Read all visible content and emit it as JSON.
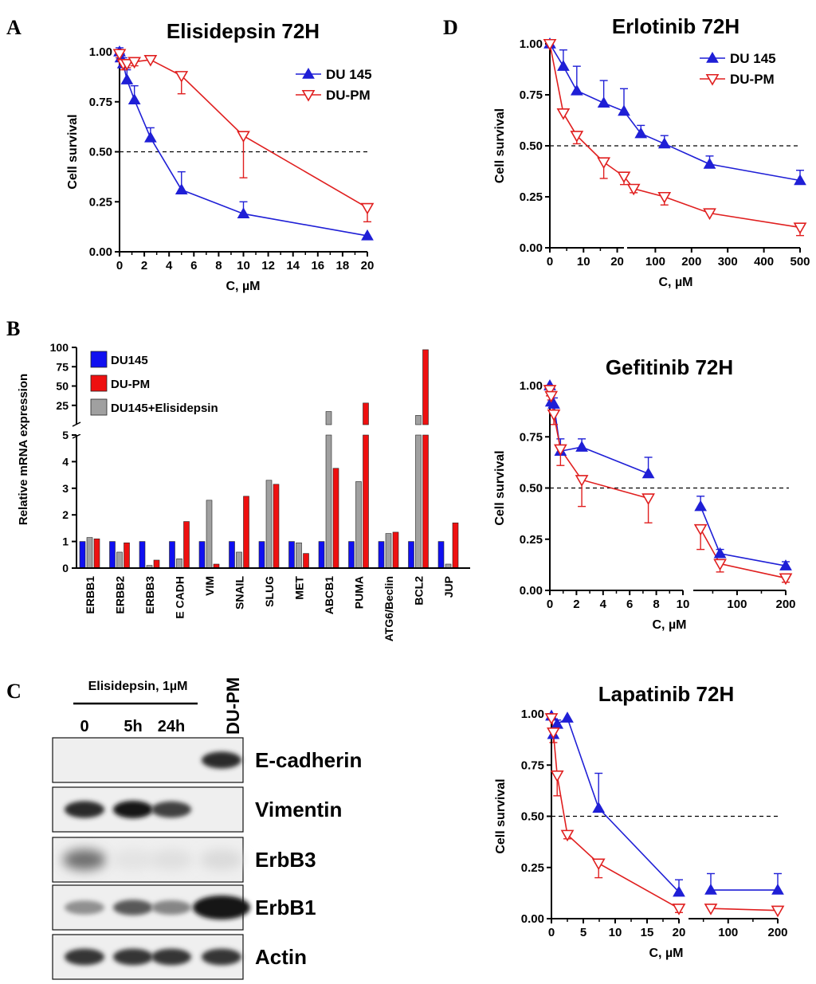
{
  "panel_labels": [
    "A",
    "B",
    "C",
    "D"
  ],
  "chart_data": [
    {
      "id": "A",
      "type": "line",
      "title": "Elisidepsin 72H",
      "xlabel": "C, µM",
      "ylabel": "Cell survival",
      "xlim": [
        0,
        20
      ],
      "ylim": [
        0,
        1
      ],
      "xticks": [
        "0",
        "2",
        "4",
        "6",
        "8",
        "10",
        "12",
        "14",
        "16",
        "18",
        "20"
      ],
      "yticks": [
        "0.00",
        "0.25",
        "0.50",
        "0.75",
        "1.00"
      ],
      "reference_line": 0.5,
      "series": [
        {
          "name": "DU 145",
          "color": "#1f1fd6",
          "marker": "triangle-up",
          "x": [
            0,
            0.1,
            0.3,
            0.6,
            1.2,
            2.5,
            5,
            10,
            20
          ],
          "y": [
            1.0,
            0.97,
            0.94,
            0.86,
            0.76,
            0.57,
            0.31,
            0.19,
            0.08
          ],
          "err": [
            0.02,
            0.02,
            0.03,
            0.05,
            0.07,
            0.05,
            0.09,
            0.06,
            0.01
          ]
        },
        {
          "name": "DU-PM",
          "color": "#e01f1f",
          "marker": "triangle-down",
          "x": [
            0,
            0.3,
            0.6,
            1.2,
            2.5,
            5,
            10,
            20
          ],
          "y": [
            0.99,
            0.94,
            0.94,
            0.95,
            0.96,
            0.88,
            0.58,
            0.22
          ],
          "err": [
            0.02,
            0.03,
            0.02,
            0.02,
            0.01,
            0.09,
            0.21,
            0.07
          ]
        }
      ]
    },
    {
      "id": "B",
      "type": "bar",
      "ylabel": "Relative mRNA expression",
      "categories": [
        "ERBB1",
        "ERBB2",
        "ERBB3",
        "E CADH",
        "VIM",
        "SNAIL",
        "SLUG",
        "MET",
        "ABCB1",
        "PUMA",
        "ATG6/Beclin",
        "BCL2",
        "JUP"
      ],
      "yticks_lower": [
        "0",
        "1",
        "2",
        "3",
        "4",
        "5"
      ],
      "yticks_upper": [
        "25",
        "50",
        "75",
        "100"
      ],
      "series": [
        {
          "name": "DU145",
          "color": "#1010f0",
          "values": [
            1,
            1,
            1,
            1,
            1,
            1,
            1,
            1,
            1,
            1,
            1,
            1,
            1
          ]
        },
        {
          "name": "DU-PM",
          "color": "#ee1010",
          "values": [
            1.1,
            0.95,
            0.3,
            1.75,
            0.15,
            2.7,
            3.15,
            0.55,
            3.75,
            28,
            1.35,
            97,
            1.7
          ]
        },
        {
          "name": "DU145+Elisidepsin",
          "color": "#a0a0a0",
          "values": [
            1.15,
            0.6,
            0.1,
            0.35,
            2.55,
            0.6,
            3.3,
            0.95,
            17,
            3.25,
            1.3,
            12,
            0.15
          ]
        }
      ]
    },
    {
      "id": "D1",
      "type": "line",
      "title": "Erlotinib 72H",
      "xlabel": "C, µM",
      "ylabel": "Cell survival",
      "xticks": [
        "0",
        "10",
        "20",
        "100",
        "200",
        "300",
        "400",
        "500"
      ],
      "yticks": [
        "0.00",
        "0.25",
        "0.50",
        "0.75",
        "1.00"
      ],
      "reference_line": 0.5,
      "series": [
        {
          "name": "DU 145",
          "color": "#1f1fd6",
          "marker": "triangle-up",
          "x": [
            0,
            4,
            8,
            16,
            22,
            60,
            125,
            250,
            500
          ],
          "y": [
            1.0,
            0.89,
            0.77,
            0.71,
            0.67,
            0.56,
            0.51,
            0.41,
            0.33
          ],
          "err": [
            0.01,
            0.08,
            0.12,
            0.11,
            0.11,
            0.04,
            0.04,
            0.04,
            0.05
          ]
        },
        {
          "name": "DU-PM",
          "color": "#e01f1f",
          "marker": "triangle-down",
          "x": [
            0,
            4,
            8,
            16,
            22,
            40,
            125,
            250,
            500
          ],
          "y": [
            1.0,
            0.66,
            0.55,
            0.42,
            0.35,
            0.29,
            0.25,
            0.17,
            0.1
          ],
          "err": [
            0.01,
            0.01,
            0.04,
            0.08,
            0.04,
            0.02,
            0.04,
            0.01,
            0.04
          ]
        }
      ]
    },
    {
      "id": "D2",
      "type": "line",
      "title": "Gefitinib 72H",
      "xlabel": "C, µM",
      "ylabel": "Cell survival",
      "xticks": [
        "0",
        "2",
        "4",
        "6",
        "8",
        "10",
        "100",
        "200"
      ],
      "yticks": [
        "0.00",
        "0.25",
        "0.50",
        "0.75",
        "1.00"
      ],
      "reference_line": 0.5,
      "series": [
        {
          "name": "DU 145",
          "color": "#1f1fd6",
          "marker": "triangle-up",
          "x": [
            0,
            0.1,
            0.3,
            0.8,
            2.4,
            7.4,
            25,
            65,
            200
          ],
          "y": [
            1.0,
            0.92,
            0.91,
            0.68,
            0.7,
            0.57,
            0.41,
            0.18,
            0.12
          ],
          "err": [
            0.01,
            0.03,
            0.03,
            0.06,
            0.04,
            0.08,
            0.05,
            0.02,
            0.02
          ]
        },
        {
          "name": "DU-PM",
          "color": "#e01f1f",
          "marker": "triangle-down",
          "x": [
            0,
            0.1,
            0.3,
            0.8,
            2.4,
            7.4,
            25,
            65,
            200
          ],
          "y": [
            0.98,
            0.95,
            0.86,
            0.69,
            0.54,
            0.45,
            0.3,
            0.13,
            0.06
          ],
          "err": [
            0.03,
            0.02,
            0.05,
            0.08,
            0.13,
            0.12,
            0.1,
            0.04,
            0.02
          ]
        }
      ]
    },
    {
      "id": "D3",
      "type": "line",
      "title": "Lapatinib 72H",
      "xlabel": "C, µM",
      "ylabel": "Cell survival",
      "xticks": [
        "0",
        "5",
        "10",
        "15",
        "20",
        "100",
        "200"
      ],
      "yticks": [
        "0.00",
        "0.25",
        "0.50",
        "0.75",
        "1.00"
      ],
      "reference_line": 0.5,
      "series": [
        {
          "name": "DU 145",
          "color": "#1f1fd6",
          "marker": "triangle-up",
          "x": [
            0,
            0.3,
            0.9,
            2.5,
            7.4,
            20,
            65,
            200
          ],
          "y": [
            0.99,
            0.9,
            0.95,
            0.98,
            0.54,
            0.13,
            0.14,
            0.14
          ],
          "err": [
            0.01,
            0.03,
            0.02,
            0.01,
            0.17,
            0.06,
            0.08,
            0.08
          ]
        },
        {
          "name": "DU-PM",
          "color": "#e01f1f",
          "marker": "triangle-down",
          "x": [
            0,
            0.3,
            0.9,
            2.5,
            7.4,
            20,
            65,
            200
          ],
          "y": [
            0.98,
            0.91,
            0.7,
            0.41,
            0.27,
            0.05,
            0.05,
            0.04
          ],
          "err": [
            0.01,
            0.05,
            0.1,
            0.02,
            0.07,
            0.02,
            0.01,
            0.01
          ]
        }
      ]
    }
  ],
  "western_blot": {
    "treatment_label": "Elisidepsin, 1µM",
    "lanes": [
      "0",
      "5h",
      "24h",
      "DU-PM"
    ],
    "proteins": [
      {
        "name": "E-cadherin",
        "intensities": [
          0.0,
          0.0,
          0.0,
          0.9
        ]
      },
      {
        "name": "Vimentin",
        "intensities": [
          0.9,
          1.0,
          0.8,
          0.0
        ]
      },
      {
        "name": "ErbB3",
        "intensities": [
          0.6,
          0.08,
          0.1,
          0.12
        ]
      },
      {
        "name": "ErbB1",
        "intensities": [
          0.45,
          0.7,
          0.5,
          1.0
        ]
      },
      {
        "name": "Actin",
        "intensities": [
          0.85,
          0.85,
          0.85,
          0.85
        ]
      }
    ]
  }
}
